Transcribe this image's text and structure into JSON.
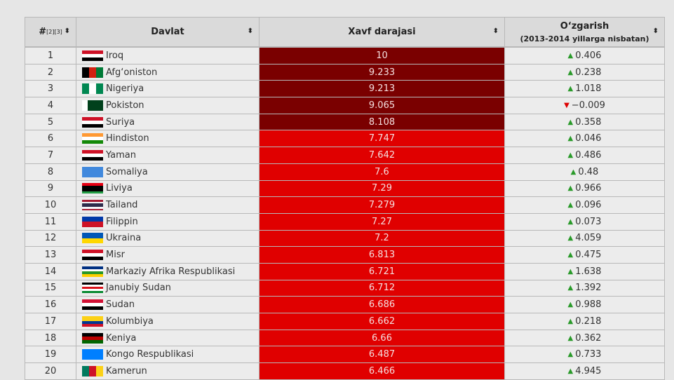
{
  "table": {
    "header": {
      "rank": "#",
      "rank_refs": "[2][3]",
      "country": "Davlat",
      "score": "Xavf darajasi",
      "change": "O‘zgarish",
      "change_note": "(2013-2014 yillarga nisbatan)"
    },
    "rows": [
      {
        "rank": "1",
        "country": "Iroq",
        "score": "10",
        "score_color": "#7a0000",
        "change": "0.406",
        "trend": "up"
      },
      {
        "rank": "2",
        "country": "Afg‘oniston",
        "score": "9.233",
        "score_color": "#7a0000",
        "change": "0.238",
        "trend": "up"
      },
      {
        "rank": "3",
        "country": "Nigeriya",
        "score": "9.213",
        "score_color": "#7a0000",
        "change": "1.018",
        "trend": "up"
      },
      {
        "rank": "4",
        "country": "Pokiston",
        "score": "9.065",
        "score_color": "#7a0000",
        "change": "−0.009",
        "trend": "down"
      },
      {
        "rank": "5",
        "country": "Suriya",
        "score": "8.108",
        "score_color": "#7a0000",
        "change": "0.358",
        "trend": "up"
      },
      {
        "rank": "6",
        "country": "Hindiston",
        "score": "7.747",
        "score_color": "#e00000",
        "change": "0.046",
        "trend": "up"
      },
      {
        "rank": "7",
        "country": "Yaman",
        "score": "7.642",
        "score_color": "#e00000",
        "change": "0.486",
        "trend": "up"
      },
      {
        "rank": "8",
        "country": "Somaliya",
        "score": "7.6",
        "score_color": "#e00000",
        "change": "0.48",
        "trend": "up"
      },
      {
        "rank": "9",
        "country": "Liviya",
        "score": "7.29",
        "score_color": "#e00000",
        "change": "0.966",
        "trend": "up"
      },
      {
        "rank": "10",
        "country": "Tailand",
        "score": "7.279",
        "score_color": "#e00000",
        "change": "0.096",
        "trend": "up"
      },
      {
        "rank": "11",
        "country": "Filippin",
        "score": "7.27",
        "score_color": "#e00000",
        "change": "0.073",
        "trend": "up"
      },
      {
        "rank": "12",
        "country": "Ukraina",
        "score": "7.2",
        "score_color": "#e00000",
        "change": "4.059",
        "trend": "up"
      },
      {
        "rank": "13",
        "country": "Misr",
        "score": "6.813",
        "score_color": "#e00000",
        "change": "0.475",
        "trend": "up"
      },
      {
        "rank": "14",
        "country": "Markaziy Afrika Respublikasi",
        "score": "6.721",
        "score_color": "#e00000",
        "change": "1.638",
        "trend": "up"
      },
      {
        "rank": "15",
        "country": "Janubiy Sudan",
        "score": "6.712",
        "score_color": "#e00000",
        "change": "1.392",
        "trend": "up"
      },
      {
        "rank": "16",
        "country": "Sudan",
        "score": "6.686",
        "score_color": "#e00000",
        "change": "0.988",
        "trend": "up"
      },
      {
        "rank": "17",
        "country": "Kolumbiya",
        "score": "6.662",
        "score_color": "#e00000",
        "change": "0.218",
        "trend": "up"
      },
      {
        "rank": "18",
        "country": "Keniya",
        "score": "6.66",
        "score_color": "#e00000",
        "change": "0.362",
        "trend": "up"
      },
      {
        "rank": "19",
        "country": "Kongo Respublikasi",
        "score": "6.487",
        "score_color": "#e00000",
        "change": "0.733",
        "trend": "up"
      },
      {
        "rank": "20",
        "country": "Kamerun",
        "score": "6.466",
        "score_color": "#e00000",
        "change": "4.945",
        "trend": "up"
      }
    ]
  }
}
